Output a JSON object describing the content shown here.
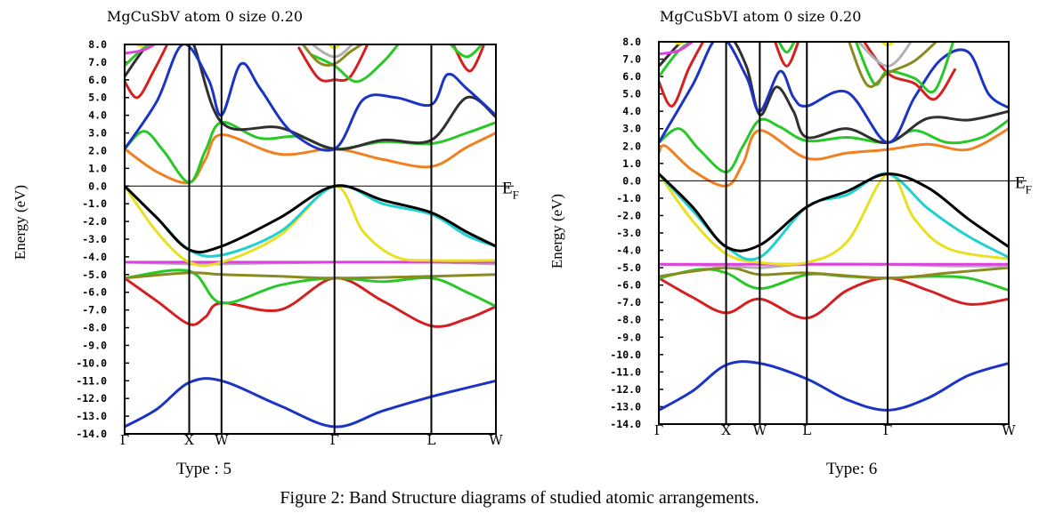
{
  "caption": "Figure 2: Band Structure diagrams of studied atomic arrangements.",
  "panels": [
    {
      "type_label": "Type : 5"
    },
    {
      "type_label": "Type: 6"
    }
  ],
  "chart_data": [
    {
      "type": "line",
      "title": "MgCuSbV atom  0    size 0.20",
      "ylabel": "Energy (eV)",
      "fermi_label": "E",
      "fermi_sub": "F",
      "ylim": [
        -14,
        8
      ],
      "yticks": [
        "8.0",
        "7.0",
        "6.0",
        "5.0",
        "4.0",
        "3.0",
        "2.0",
        "1.0",
        "0.0",
        "-1.0",
        "-2.0",
        "-3.0",
        "-4.0",
        "-5.0",
        "-6.0",
        "-7.0",
        "-8.0",
        "-9.0",
        "-10.0",
        "-11.0",
        "-12.0",
        "-13.0",
        "-14.0"
      ],
      "kpoints": [
        {
          "label": "Γ",
          "x": 0
        },
        {
          "label": "X",
          "x": 1
        },
        {
          "label": "W",
          "x": 1.5
        },
        {
          "label": "Γ",
          "x": 3.25
        },
        {
          "label": "L",
          "x": 4.75
        },
        {
          "label": "W",
          "x": 5.75
        }
      ],
      "series": [
        {
          "color": "#1c34c4",
          "x": [
            0,
            0.5,
            1,
            1.5,
            2.4,
            3.25,
            4.0,
            4.75,
            5.3,
            5.75
          ],
          "y": [
            -13.6,
            -12.6,
            -11.1,
            -11.0,
            -12.4,
            -13.6,
            -12.7,
            -11.9,
            -11.4,
            -11.0
          ]
        },
        {
          "color": "#d42020",
          "x": [
            0,
            0.5,
            1,
            1.25,
            1.5,
            2.4,
            3.25,
            4.0,
            4.75,
            5.3,
            5.75
          ],
          "y": [
            -5.2,
            -6.5,
            -7.8,
            -7.4,
            -6.6,
            -7.0,
            -5.2,
            -6.5,
            -7.9,
            -7.5,
            -6.8
          ]
        },
        {
          "color": "#28c828",
          "x": [
            0,
            1,
            1.5,
            2.4,
            3.25,
            4.0,
            4.75,
            5.3,
            5.75
          ],
          "y": [
            -5.2,
            -4.8,
            -6.6,
            -5.6,
            -5.2,
            -5.4,
            -5.2,
            -6.0,
            -6.8
          ]
        },
        {
          "color": "#8a8a20",
          "x": [
            0,
            1,
            1.5,
            2.4,
            3.25,
            4.75,
            5.75
          ],
          "y": [
            -5.2,
            -4.9,
            -5.0,
            -5.1,
            -5.2,
            -5.1,
            -5.0
          ]
        },
        {
          "color": "#b0b0b0",
          "x": [
            0,
            1,
            1.5,
            3.25,
            4.75,
            5.75
          ],
          "y": [
            -4.3,
            -4.4,
            -4.4,
            -4.3,
            -4.3,
            -4.4
          ]
        },
        {
          "color": "#e040e0",
          "x": [
            0,
            1,
            1.5,
            3.25,
            4.75,
            5.75
          ],
          "y": [
            -4.3,
            -4.3,
            -4.3,
            -4.3,
            -4.3,
            -4.3
          ]
        },
        {
          "color": "#e8e020",
          "x": [
            0,
            0.5,
            1,
            1.5,
            2.4,
            3.25,
            3.7,
            4.2,
            4.75,
            5.75
          ],
          "y": [
            0.0,
            -2.6,
            -4.3,
            -4.3,
            -2.8,
            0.0,
            -2.6,
            -4.0,
            -4.2,
            -4.2
          ]
        },
        {
          "color": "#20d0d0",
          "x": [
            0,
            0.5,
            1,
            1.5,
            2.4,
            3.25,
            4.0,
            4.75,
            5.3,
            5.75
          ],
          "y": [
            0.0,
            -1.8,
            -3.6,
            -3.9,
            -2.6,
            0.0,
            -1.0,
            -1.6,
            -2.8,
            -3.4
          ]
        },
        {
          "color": "#000000",
          "x": [
            0,
            0.5,
            1,
            1.5,
            2.4,
            3.25,
            4.0,
            4.75,
            5.3,
            5.75
          ],
          "y": [
            0.0,
            -1.8,
            -3.6,
            -3.4,
            -1.8,
            0.0,
            -0.8,
            -1.5,
            -2.6,
            -3.4
          ]
        },
        {
          "color": "#f08020",
          "x": [
            0,
            0.5,
            1,
            1.25,
            1.5,
            2.4,
            3.25,
            4.0,
            4.75,
            5.3,
            5.75
          ],
          "y": [
            2.1,
            0.8,
            0.2,
            1.5,
            2.9,
            1.8,
            2.1,
            1.5,
            1.1,
            2.2,
            3.0
          ]
        },
        {
          "color": "#28c828",
          "x": [
            0,
            0.3,
            0.6,
            1,
            1.25,
            1.5,
            2.1,
            2.7,
            3.25,
            4.0,
            4.75,
            5.3,
            5.75
          ],
          "y": [
            2.1,
            3.1,
            2.0,
            0.2,
            2.0,
            3.6,
            2.7,
            2.8,
            2.1,
            2.5,
            2.4,
            3.0,
            3.6
          ]
        },
        {
          "color": "#303030",
          "x": [
            0,
            0.5,
            1,
            1.5,
            2.4,
            3.25,
            4.0,
            4.75,
            5.3,
            5.75
          ],
          "y": [
            6.2,
            8.5,
            8.5,
            3.6,
            3.3,
            2.1,
            2.6,
            2.6,
            5.0,
            3.9
          ]
        },
        {
          "color": "#1c34c4",
          "x": [
            0,
            0.5,
            0.9,
            1.3,
            1.5,
            1.8,
            2.1,
            2.6,
            3.25,
            3.7,
            4.2,
            4.75,
            5.0,
            5.3,
            5.75
          ],
          "y": [
            2.1,
            4.8,
            8.0,
            6.0,
            4.0,
            6.9,
            5.5,
            3.0,
            2.1,
            4.9,
            5.0,
            4.6,
            6.3,
            5.5,
            4.0
          ]
        },
        {
          "color": "#d42020",
          "x": [
            0,
            0.2,
            0.45,
            0.7
          ],
          "y": [
            5.9,
            5.0,
            6.5,
            8.3
          ]
        },
        {
          "color": "#d42020",
          "x": [
            2.7,
            3.0,
            3.25,
            3.5,
            3.8
          ],
          "y": [
            7.8,
            6.1,
            6.0,
            6.2,
            8.3
          ]
        },
        {
          "color": "#d42020",
          "x": [
            5.1,
            5.35,
            5.6
          ],
          "y": [
            7.9,
            6.5,
            8.3
          ]
        },
        {
          "color": "#28c828",
          "x": [
            0,
            0.3,
            0.6
          ],
          "y": [
            6.8,
            7.8,
            8.3
          ]
        },
        {
          "color": "#28c828",
          "x": [
            2.9,
            3.25,
            3.6,
            4.0,
            4.3
          ],
          "y": [
            7.4,
            6.8,
            5.9,
            7.0,
            8.3
          ]
        },
        {
          "color": "#28c828",
          "x": [
            5.0,
            5.3,
            5.6
          ],
          "y": [
            8.2,
            7.3,
            8.3
          ]
        },
        {
          "color": "#8a8a20",
          "x": [
            2.7,
            3.0,
            3.25,
            3.5,
            3.8
          ],
          "y": [
            8.3,
            7.0,
            6.9,
            7.6,
            8.3
          ]
        },
        {
          "color": "#b0b0b0",
          "x": [
            2.8,
            3.25,
            3.6
          ],
          "y": [
            8.3,
            7.3,
            8.3
          ]
        },
        {
          "color": "#e040e0",
          "x": [
            0,
            0.3,
            0.6
          ],
          "y": [
            7.5,
            7.7,
            8.3
          ]
        },
        {
          "color": "#e8e020",
          "x": [
            0.1,
            0.25,
            0.4
          ],
          "y": [
            8.3,
            7.9,
            8.3
          ]
        },
        {
          "color": "#e8e020",
          "x": [
            3.1,
            3.25,
            3.4
          ],
          "y": [
            8.3,
            7.8,
            8.3
          ]
        }
      ]
    },
    {
      "type": "line",
      "title": "MgCuSbVI atom  0    size 0.20",
      "ylabel": "Energy (eV)",
      "fermi_label": "E",
      "fermi_sub": "F",
      "ylim": [
        -14,
        8
      ],
      "yticks": [
        "8.0",
        "7.0",
        "6.0",
        "5.0",
        "4.0",
        "3.0",
        "2.0",
        "1.0",
        "0.0",
        "-1.0",
        "-2.0",
        "-3.0",
        "-4.0",
        "-5.0",
        "-6.0",
        "-7.0",
        "-8.0",
        "-9.0",
        "-10.0",
        "-11.0",
        "-12.0",
        "-13.0",
        "-14.0"
      ],
      "kpoints": [
        {
          "label": "Γ",
          "x": 0
        },
        {
          "label": "X",
          "x": 1
        },
        {
          "label": "W",
          "x": 1.5
        },
        {
          "label": "L",
          "x": 2.2
        },
        {
          "label": "Γ",
          "x": 3.4
        },
        {
          "label": "W",
          "x": 5.2
        }
      ],
      "series": [
        {
          "color": "#1c34c4",
          "x": [
            0,
            0.5,
            1,
            1.5,
            2.2,
            2.8,
            3.4,
            4.0,
            4.6,
            5.2
          ],
          "y": [
            -13.2,
            -12.1,
            -10.6,
            -10.5,
            -11.4,
            -12.6,
            -13.2,
            -12.5,
            -11.2,
            -10.5
          ]
        },
        {
          "color": "#d42020",
          "x": [
            0,
            0.5,
            1,
            1.5,
            2.2,
            2.8,
            3.4,
            4.0,
            4.6,
            5.2
          ],
          "y": [
            -5.6,
            -6.7,
            -7.6,
            -6.8,
            -7.9,
            -6.3,
            -5.6,
            -6.3,
            -7.1,
            -6.8
          ]
        },
        {
          "color": "#28c828",
          "x": [
            0,
            0.6,
            1,
            1.5,
            2.2,
            2.8,
            3.4,
            4.0,
            4.6,
            5.2
          ],
          "y": [
            -5.6,
            -5.1,
            -5.3,
            -6.2,
            -5.4,
            -5.5,
            -5.6,
            -5.5,
            -5.6,
            -6.3
          ]
        },
        {
          "color": "#8a8a20",
          "x": [
            0,
            1,
            1.5,
            2.2,
            3.4,
            4.3,
            5.2
          ],
          "y": [
            -5.5,
            -5.0,
            -5.4,
            -5.3,
            -5.6,
            -5.3,
            -5.0
          ]
        },
        {
          "color": "#b0b0b0",
          "x": [
            0,
            1,
            1.5,
            2.2,
            3.4,
            4.3,
            5.2
          ],
          "y": [
            -4.8,
            -4.9,
            -5.0,
            -4.8,
            -4.8,
            -4.9,
            -4.9
          ]
        },
        {
          "color": "#e040e0",
          "x": [
            0,
            1,
            1.5,
            2.2,
            3.4,
            4.3,
            5.2
          ],
          "y": [
            -4.8,
            -4.8,
            -4.8,
            -4.8,
            -4.8,
            -4.8,
            -4.8
          ]
        },
        {
          "color": "#e8e020",
          "x": [
            0,
            0.5,
            1,
            1.5,
            2.2,
            2.8,
            3.4,
            3.8,
            4.3,
            5.2
          ],
          "y": [
            0.4,
            -2.3,
            -4.2,
            -4.7,
            -4.7,
            -3.5,
            0.4,
            -2.2,
            -3.9,
            -4.5
          ]
        },
        {
          "color": "#20d0d0",
          "x": [
            0,
            0.5,
            1,
            1.5,
            2.2,
            2.8,
            3.4,
            4.0,
            4.6,
            5.2
          ],
          "y": [
            0.4,
            -1.7,
            -3.8,
            -4.4,
            -1.5,
            -0.8,
            0.4,
            -1.6,
            -3.2,
            -4.4
          ]
        },
        {
          "color": "#000000",
          "x": [
            0,
            0.5,
            1,
            1.5,
            2.2,
            2.8,
            3.4,
            4.0,
            4.6,
            5.2
          ],
          "y": [
            0.4,
            -1.5,
            -3.8,
            -3.7,
            -1.5,
            -0.6,
            0.4,
            -0.4,
            -2.2,
            -3.8
          ]
        },
        {
          "color": "#f08020",
          "x": [
            0,
            0.1,
            0.5,
            1,
            1.25,
            1.5,
            2.2,
            2.8,
            3.4,
            4.0,
            4.6,
            5.2
          ],
          "y": [
            1.6,
            2.0,
            0.6,
            -0.3,
            1.0,
            2.9,
            1.3,
            1.6,
            1.8,
            2.1,
            1.8,
            3.0
          ]
        },
        {
          "color": "#28c828",
          "x": [
            0,
            0.3,
            0.6,
            1,
            1.25,
            1.5,
            1.8,
            2.2,
            2.8,
            3.4,
            3.8,
            4.3,
            4.8,
            5.2
          ],
          "y": [
            2.2,
            3.0,
            1.8,
            0.5,
            2.0,
            3.5,
            3.1,
            2.3,
            2.5,
            2.2,
            2.9,
            2.2,
            2.5,
            3.5
          ]
        },
        {
          "color": "#303030",
          "x": [
            0,
            0.5,
            1.0,
            1.3,
            1.5,
            1.75,
            2.0,
            2.2,
            2.8,
            3.4,
            4.0,
            4.6,
            5.2
          ],
          "y": [
            6.6,
            8.5,
            8.5,
            6.6,
            3.8,
            5.4,
            4.0,
            2.5,
            3.0,
            2.2,
            3.6,
            3.5,
            4.0
          ]
        },
        {
          "color": "#1c34c4",
          "x": [
            0,
            0.5,
            0.9,
            1.3,
            1.5,
            1.8,
            2.0,
            2.2,
            2.8,
            3.4,
            3.8,
            4.2,
            4.6,
            4.9,
            5.2
          ],
          "y": [
            2.2,
            5.5,
            8.3,
            6.0,
            4.0,
            6.3,
            4.8,
            4.3,
            5.1,
            2.2,
            4.8,
            7.0,
            7.4,
            5.0,
            4.2
          ]
        },
        {
          "color": "#d42020",
          "x": [
            0,
            0.2,
            0.45,
            0.7
          ],
          "y": [
            5.7,
            4.3,
            6.5,
            8.3
          ]
        },
        {
          "color": "#d42020",
          "x": [
            1.7,
            1.9,
            2.1
          ],
          "y": [
            8.3,
            6.6,
            8.3
          ]
        },
        {
          "color": "#d42020",
          "x": [
            3.0,
            3.4,
            3.8,
            4.1,
            4.4
          ],
          "y": [
            8.3,
            6.2,
            5.6,
            4.7,
            6.4
          ]
        },
        {
          "color": "#28c828",
          "x": [
            0,
            0.3,
            0.6
          ],
          "y": [
            6.0,
            7.5,
            8.3
          ]
        },
        {
          "color": "#28c828",
          "x": [
            1.75,
            1.9,
            2.05
          ],
          "y": [
            8.3,
            7.4,
            8.3
          ]
        },
        {
          "color": "#28c828",
          "x": [
            2.9,
            3.2,
            3.4,
            3.8,
            4.1,
            4.4
          ],
          "y": [
            8.3,
            5.6,
            6.3,
            5.9,
            5.2,
            8.3
          ]
        },
        {
          "color": "#8a8a20",
          "x": [
            2.8,
            3.1,
            3.4,
            3.8,
            4.2
          ],
          "y": [
            8.3,
            5.5,
            6.2,
            6.9,
            8.3
          ]
        },
        {
          "color": "#b0b0b0",
          "x": [
            2.9,
            3.4,
            3.8
          ],
          "y": [
            8.3,
            6.6,
            8.3
          ]
        },
        {
          "color": "#e040e0",
          "x": [
            0,
            0.3,
            0.6
          ],
          "y": [
            7.3,
            7.5,
            8.3
          ]
        },
        {
          "color": "#e8e020",
          "x": [
            0.15,
            0.3,
            0.45
          ],
          "y": [
            8.3,
            7.9,
            8.3
          ]
        },
        {
          "color": "#e8e020",
          "x": [
            3.25,
            3.4,
            3.55
          ],
          "y": [
            8.3,
            7.8,
            8.3
          ]
        }
      ]
    }
  ]
}
